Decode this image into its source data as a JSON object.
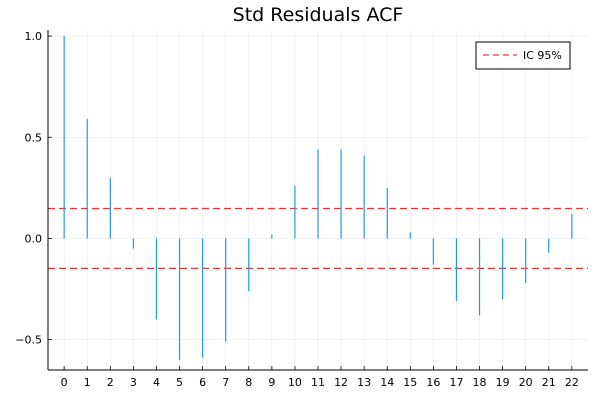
{
  "chart_data": {
    "type": "bar",
    "title": "Std Residuals ACF",
    "xlabel": "",
    "ylabel": "",
    "x": [
      0,
      1,
      2,
      3,
      4,
      5,
      6,
      7,
      8,
      9,
      10,
      11,
      12,
      13,
      14,
      15,
      16,
      17,
      18,
      19,
      20,
      21,
      22
    ],
    "x_tick_labels": [
      "0",
      "1",
      "2",
      "3",
      "4",
      "5",
      "6",
      "7",
      "8",
      "9",
      "10",
      "11",
      "12",
      "13",
      "14",
      "15",
      "16",
      "17",
      "18",
      "19",
      "20",
      "21",
      "22"
    ],
    "values": [
      1.0,
      0.59,
      0.3,
      -0.05,
      -0.4,
      -0.6,
      -0.59,
      -0.51,
      -0.26,
      0.02,
      0.26,
      0.44,
      0.44,
      0.41,
      0.25,
      0.03,
      -0.13,
      -0.31,
      -0.38,
      -0.3,
      -0.22,
      -0.07,
      0.12
    ],
    "xlim": [
      -0.7,
      22.7
    ],
    "ylim": [
      -0.65,
      1.03
    ],
    "y_ticks": [
      1.0,
      0.5,
      0.0,
      -0.5
    ],
    "y_tick_labels": [
      "1.0",
      "0.5",
      "0.0",
      "−0.5"
    ],
    "confidence_band": {
      "name": "IC 95%",
      "upper": 0.148,
      "lower": -0.148,
      "color": "#e53935"
    },
    "series_color": "#1e9be0",
    "grid": true,
    "legend_position": "top-right"
  }
}
